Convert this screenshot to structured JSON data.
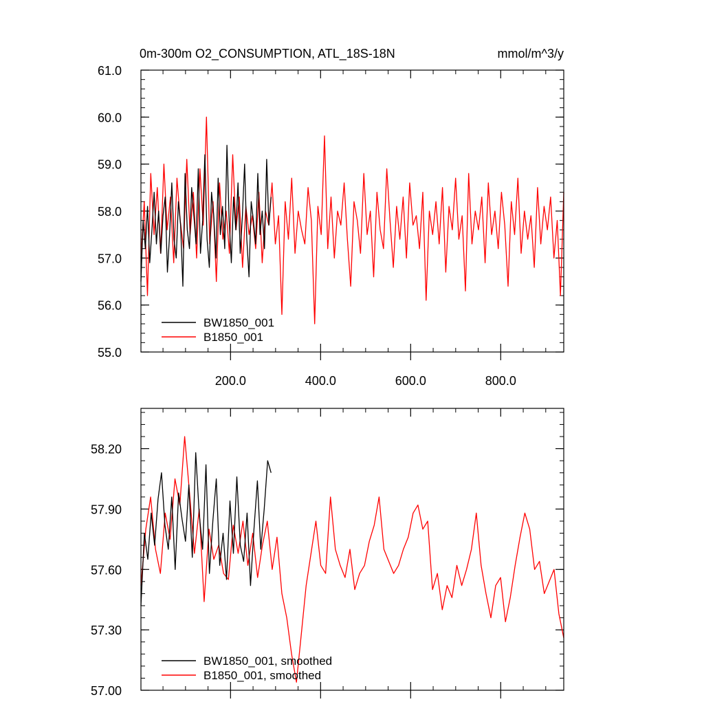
{
  "chart_data": [
    {
      "type": "line",
      "title": "0m-300m O2_CONSUMPTION, ATL_18S-18N",
      "units": "mmol/m^3/y",
      "xlim": [
        1,
        940
      ],
      "ylim": [
        55.0,
        61.0
      ],
      "xticks": [
        200,
        400,
        600,
        800
      ],
      "xtick_labels": [
        "200.0",
        "400.0",
        "600.0",
        "800.0"
      ],
      "yticks": [
        55,
        56,
        57,
        58,
        59,
        60,
        61
      ],
      "ytick_labels": [
        "55.0",
        "56.0",
        "57.0",
        "58.0",
        "59.0",
        "60.0",
        "61.0"
      ],
      "legend_position": "bottom-left",
      "series": [
        {
          "name": "BW1850_001",
          "color": "#000000",
          "x_range": [
            1,
            290
          ],
          "values": [
            56.5,
            57.8,
            57.2,
            58.1,
            56.9,
            57.6,
            58.4,
            57.3,
            58.0,
            57.1,
            57.9,
            58.3,
            56.7,
            57.5,
            58.6,
            57.4,
            57.0,
            58.2,
            57.7,
            56.4,
            58.8,
            57.6,
            57.2,
            58.5,
            57.9,
            57.3,
            58.9,
            57.1,
            57.8,
            59.2,
            57.4,
            56.8,
            58.4,
            57.9,
            57.0,
            58.7,
            57.5,
            58.1,
            57.2,
            59.4,
            57.8,
            56.9,
            58.3,
            57.6,
            58.6,
            57.1,
            57.9,
            59.0,
            57.4,
            56.6,
            58.2,
            57.8,
            57.3,
            58.8,
            57.5,
            58.0,
            57.2,
            59.1,
            57.7,
            58.3
          ]
        },
        {
          "name": "B1850_001",
          "color": "#ff0000",
          "x_range": [
            1,
            940
          ],
          "values": [
            57.0,
            58.2,
            56.2,
            58.8,
            57.5,
            58.5,
            57.1,
            59.0,
            57.6,
            58.3,
            56.9,
            58.7,
            57.8,
            57.2,
            59.1,
            57.5,
            58.4,
            57.0,
            58.9,
            57.7,
            60.0,
            57.3,
            58.2,
            56.5,
            58.6,
            57.4,
            58.0,
            57.1,
            59.2,
            57.6,
            58.3,
            56.8,
            58.1,
            57.5,
            57.9,
            57.2,
            58.4,
            56.9,
            58.0,
            57.7,
            58.6,
            57.3,
            57.9,
            55.8,
            58.2,
            57.4,
            58.7,
            57.1,
            58.0,
            57.6,
            57.3,
            58.5,
            57.8,
            55.6,
            58.1,
            57.5,
            59.6,
            57.2,
            58.3,
            57.0,
            58.0,
            57.7,
            58.6,
            57.4,
            56.4,
            58.2,
            57.8,
            57.1,
            58.8,
            57.5,
            58.0,
            56.6,
            58.4,
            57.6,
            57.2,
            58.9,
            57.8,
            56.8,
            58.1,
            57.4,
            58.3,
            57.0,
            58.6,
            57.7,
            57.9,
            57.2,
            58.4,
            56.1,
            58.0,
            57.5,
            58.2,
            57.3,
            58.5,
            56.7,
            58.1,
            57.6,
            58.7,
            57.4,
            57.9,
            56.3,
            58.8,
            57.3,
            58.0,
            57.6,
            58.3,
            56.9,
            58.6,
            57.5,
            58.0,
            57.2,
            58.4,
            57.7,
            56.4,
            58.2,
            57.5,
            58.7,
            57.1,
            58.0,
            57.4,
            57.9,
            56.8,
            58.5,
            57.3,
            58.1,
            57.6,
            58.3,
            57.0,
            57.8,
            56.2,
            58.4
          ]
        }
      ]
    },
    {
      "type": "line",
      "xlim": [
        1,
        940
      ],
      "ylim": [
        57.0,
        58.4
      ],
      "yticks": [
        57.0,
        57.3,
        57.6,
        57.9,
        58.2
      ],
      "ytick_labels": [
        "57.00",
        "57.30",
        "57.60",
        "57.90",
        "58.20"
      ],
      "xticks": [
        200,
        400,
        600,
        800
      ],
      "legend_position": "bottom-left",
      "series": [
        {
          "name": "BW1850_001, smoothed",
          "color": "#000000",
          "x_range": [
            1,
            290
          ],
          "values": [
            57.42,
            57.78,
            57.65,
            57.88,
            57.72,
            57.95,
            58.08,
            57.82,
            57.7,
            57.96,
            57.6,
            57.98,
            57.85,
            57.74,
            58.02,
            57.66,
            58.18,
            57.88,
            57.7,
            58.12,
            57.58,
            57.84,
            58.05,
            57.62,
            57.78,
            57.55,
            57.94,
            57.68,
            58.06,
            57.72,
            57.64,
            57.88,
            57.52,
            57.8,
            58.04,
            57.7,
            57.9,
            58.14,
            58.08
          ]
        },
        {
          "name": "B1850_001, smoothed",
          "color": "#ff0000",
          "x_range": [
            1,
            940
          ],
          "values": [
            57.52,
            57.8,
            57.96,
            57.7,
            57.58,
            57.88,
            57.75,
            58.05,
            57.92,
            58.26,
            57.98,
            57.68,
            57.9,
            57.44,
            57.8,
            57.65,
            57.72,
            57.58,
            57.55,
            57.82,
            57.68,
            57.84,
            57.62,
            57.78,
            57.56,
            57.72,
            57.84,
            57.6,
            57.76,
            57.48,
            57.36,
            57.18,
            57.04,
            57.28,
            57.52,
            57.68,
            57.84,
            57.62,
            57.58,
            57.96,
            57.7,
            57.62,
            57.56,
            57.7,
            57.5,
            57.58,
            57.62,
            57.74,
            57.82,
            57.96,
            57.7,
            57.64,
            57.58,
            57.62,
            57.7,
            57.76,
            57.88,
            57.92,
            57.8,
            57.84,
            57.5,
            57.58,
            57.4,
            57.52,
            57.46,
            57.62,
            57.52,
            57.6,
            57.7,
            57.88,
            57.62,
            57.48,
            57.36,
            57.52,
            57.56,
            57.34,
            57.46,
            57.62,
            57.76,
            57.88,
            57.8,
            57.6,
            57.64,
            57.48,
            57.54,
            57.6,
            57.38,
            57.26
          ]
        }
      ]
    }
  ]
}
